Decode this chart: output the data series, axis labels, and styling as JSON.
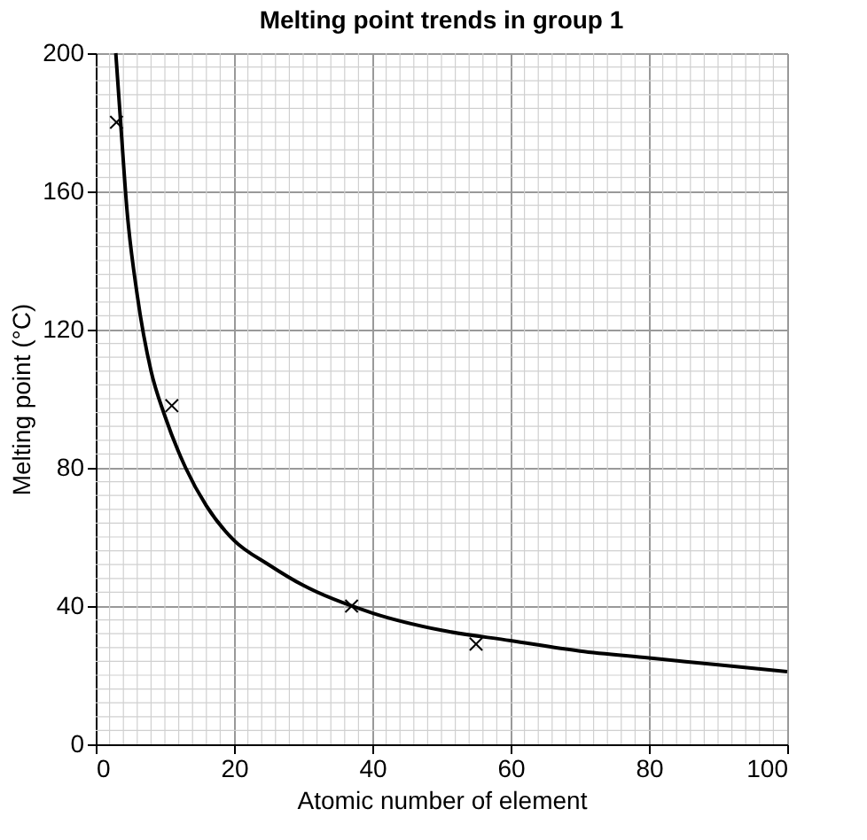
{
  "chart_data": {
    "type": "scatter",
    "title": "Melting point trends in group 1",
    "xlabel": "Atomic number of element",
    "ylabel": "Melting point (°C)",
    "xlim": [
      0,
      100
    ],
    "ylim": [
      0,
      200
    ],
    "xticks": [
      0,
      20,
      40,
      60,
      80,
      100
    ],
    "yticks": [
      0,
      40,
      80,
      120,
      160,
      200
    ],
    "grid": true,
    "legend": false,
    "series": [
      {
        "marker": "cross",
        "color": "#000000",
        "x": [
          3,
          11,
          37,
          55
        ],
        "values": [
          180,
          98,
          40,
          29
        ]
      },
      {
        "type": "line",
        "marker": "none",
        "line_style": "solid",
        "color": "#000000",
        "x": [
          2.9,
          3.6,
          4.5,
          6,
          8,
          10,
          13,
          16,
          20,
          25,
          30,
          40,
          50,
          60,
          70,
          80,
          90,
          100
        ],
        "values": [
          200,
          180,
          155,
          130,
          108,
          95,
          80,
          69,
          59,
          52,
          46,
          38,
          33,
          30,
          27,
          25,
          23,
          21
        ]
      }
    ]
  }
}
